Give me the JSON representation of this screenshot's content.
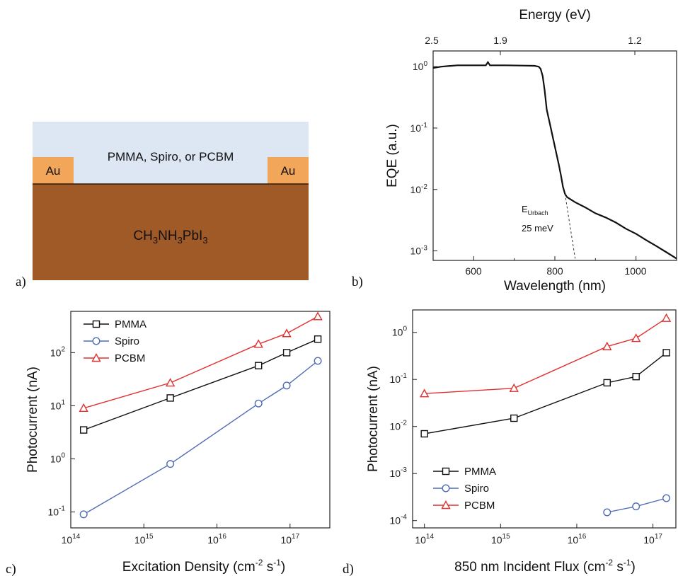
{
  "colors": {
    "pmma": "#111111",
    "spiro": "#4f6bb5",
    "pcbm": "#e03030",
    "layer_top": "#dde6f3",
    "au": "#f2a65a",
    "perovskite": "#a05a28"
  },
  "panel_a": {
    "label": "a)",
    "top_layer": "PMMA, Spiro, or PCBM",
    "electrode_left": "Au",
    "electrode_right": "Au",
    "absorber_parts": [
      {
        "t": "CH",
        "sub": false
      },
      {
        "t": "3",
        "sub": true
      },
      {
        "t": "NH",
        "sub": false
      },
      {
        "t": "3",
        "sub": true
      },
      {
        "t": "PbI",
        "sub": false
      },
      {
        "t": "3",
        "sub": true
      }
    ]
  },
  "panel_b_text": {
    "label": "b)",
    "top_axis_label": "Energy (eV)",
    "top_ticks": [
      "2.5",
      "1.9",
      "1.2"
    ],
    "x_ticks": [
      "600",
      "800",
      "1000"
    ],
    "ann_main": "E",
    "ann_sub": "Urbach",
    "ann_value": "25 meV"
  },
  "panel_c_text": {
    "label": "c)"
  },
  "panel_d_text": {
    "label": "d)"
  },
  "chart_data": [
    {
      "type": "line",
      "panel": "b",
      "xlabel": "Wavelength (nm)",
      "ylabel": "EQE (a.u.)",
      "xlim": [
        500,
        1100
      ],
      "ylim": [
        0.0007,
        1.8
      ],
      "yscale": "log",
      "top_axis": {
        "label": "Energy (eV)",
        "ticks": [
          2.5,
          1.9,
          1.2
        ]
      },
      "series": [
        {
          "x": [
            500,
            520,
            560,
            600,
            630,
            635,
            640,
            680,
            720,
            750,
            760,
            765,
            770,
            775,
            780,
            790,
            800,
            810,
            815,
            820,
            825,
            830,
            850,
            875,
            900,
            925,
            950,
            975,
            1000,
            1025,
            1050,
            1075,
            1100
          ],
          "y": [
            0.95,
            1.0,
            1.05,
            1.05,
            1.05,
            1.18,
            1.05,
            1.05,
            1.04,
            1.03,
            1.0,
            0.92,
            0.7,
            0.4,
            0.2,
            0.1,
            0.05,
            0.025,
            0.017,
            0.011,
            0.0085,
            0.0075,
            0.0062,
            0.0051,
            0.0041,
            0.0035,
            0.0029,
            0.0023,
            0.0019,
            0.0015,
            0.0012,
            0.00095,
            0.00075
          ]
        }
      ],
      "urbach_fit": {
        "x": [
          825,
          850
        ],
        "y": [
          0.0085,
          0.00075
        ]
      },
      "annotations": [
        "EUrbach",
        "25 meV"
      ]
    },
    {
      "type": "line",
      "panel": "c",
      "xlabel": "Excitation Density (cm-2 s-1)",
      "ylabel": "Photocurrent (nA)",
      "xscale": "log",
      "yscale": "log",
      "xlim": [
        100000000000000.0,
        3.5e+17
      ],
      "ylim": [
        0.05,
        600
      ],
      "legend": "top-left",
      "series": [
        {
          "name": "PMMA",
          "x": [
            150000000000000.0,
            2300000000000000.0,
            3.7e+16,
            9e+16,
            2.4e+17
          ],
          "y": [
            3.5,
            14,
            57,
            100,
            180
          ]
        },
        {
          "name": "Spiro",
          "x": [
            150000000000000.0,
            2300000000000000.0,
            3.7e+16,
            9e+16,
            2.4e+17
          ],
          "y": [
            0.09,
            0.8,
            11,
            24,
            70
          ]
        },
        {
          "name": "PCBM",
          "x": [
            150000000000000.0,
            2300000000000000.0,
            3.7e+16,
            9e+16,
            2.4e+17
          ],
          "y": [
            9,
            27,
            145,
            230,
            480
          ]
        }
      ]
    },
    {
      "type": "line",
      "panel": "d",
      "xlabel": "850 nm Incident Flux (cm-2 s-1)",
      "ylabel": "Photocurrent (nA)",
      "xscale": "log",
      "yscale": "log",
      "xlim": [
        70000000000000.0,
        2e+17
      ],
      "ylim": [
        7e-05,
        3
      ],
      "legend": "bottom-left",
      "series": [
        {
          "name": "PMMA",
          "x": [
            100000000000000.0,
            1500000000000000.0,
            2.5e+16,
            6e+16,
            1.5e+17
          ],
          "y": [
            0.007,
            0.015,
            0.085,
            0.115,
            0.37
          ]
        },
        {
          "name": "Spiro",
          "x": [
            2.5e+16,
            6e+16,
            1.5e+17
          ],
          "y": [
            0.00015,
            0.0002,
            0.0003
          ]
        },
        {
          "name": "PCBM",
          "x": [
            100000000000000.0,
            1500000000000000.0,
            2.5e+16,
            6e+16,
            1.5e+17
          ],
          "y": [
            0.05,
            0.065,
            0.5,
            0.75,
            2.0
          ]
        }
      ]
    }
  ]
}
